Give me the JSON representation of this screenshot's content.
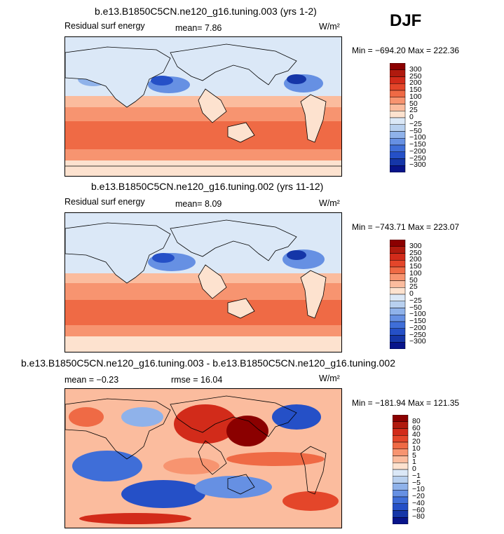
{
  "season": "DJF",
  "panels": [
    {
      "id": "p1",
      "title": "b.e13.B1850C5CN.ne120_g16.tuning.003 (yrs 1-2)",
      "variable": "Residual surf energy",
      "stat1": "mean=   7.86",
      "stat2": "",
      "units": "W/m²",
      "minmax": "Min = −694.20  Max = 222.36",
      "colorbar_labels": [
        "300",
        "250",
        "200",
        "150",
        "100",
        "50",
        "25",
        "0",
        "−25",
        "−50",
        "−100",
        "−150",
        "−200",
        "−250",
        "−300"
      ],
      "colors": [
        "#8b0000",
        "#b01a0e",
        "#d22b1a",
        "#e4462a",
        "#ef6a45",
        "#f79470",
        "#fbbc9e",
        "#fde2cf",
        "#dbe8f7",
        "#b8d0ef",
        "#8fb2ea",
        "#6690e3",
        "#3f6ed8",
        "#2550c7",
        "#1536a8",
        "#08148a"
      ]
    },
    {
      "id": "p2",
      "title": "b.e13.B1850C5CN.ne120_g16.tuning.002 (yrs 11-12)",
      "variable": "Residual surf energy",
      "stat1": "mean=   8.09",
      "stat2": "",
      "units": "W/m²",
      "minmax": "Min = −743.71  Max = 223.07",
      "colorbar_labels": [
        "300",
        "250",
        "200",
        "150",
        "100",
        "50",
        "25",
        "0",
        "−25",
        "−50",
        "−100",
        "−150",
        "−200",
        "−250",
        "−300"
      ],
      "colors": [
        "#8b0000",
        "#b01a0e",
        "#d22b1a",
        "#e4462a",
        "#ef6a45",
        "#f79470",
        "#fbbc9e",
        "#fde2cf",
        "#dbe8f7",
        "#b8d0ef",
        "#8fb2ea",
        "#6690e3",
        "#3f6ed8",
        "#2550c7",
        "#1536a8",
        "#08148a"
      ]
    },
    {
      "id": "p3",
      "title": "b.e13.B1850C5CN.ne120_g16.tuning.003 - b.e13.B1850C5CN.ne120_g16.tuning.002",
      "variable": "",
      "stat1": "mean =   −0.23",
      "stat2": "rmse =   16.04",
      "units": "W/m²",
      "minmax": "Min = −181.94  Max = 121.35",
      "colorbar_labels": [
        "80",
        "60",
        "40",
        "20",
        "10",
        "5",
        "1",
        "0",
        "−1",
        "−5",
        "−10",
        "−20",
        "−40",
        "−60",
        "−80"
      ],
      "colors": [
        "#8b0000",
        "#b01a0e",
        "#d22b1a",
        "#e4462a",
        "#ef6a45",
        "#f79470",
        "#fbbc9e",
        "#fde2cf",
        "#dbe8f7",
        "#b8d0ef",
        "#8fb2ea",
        "#6690e3",
        "#3f6ed8",
        "#2550c7",
        "#1536a8",
        "#08148a"
      ]
    }
  ],
  "chart_data": [
    {
      "type": "heatmap",
      "title": "b.e13.B1850C5CN.ne120_g16.tuning.003 (yrs 1-2)",
      "variable": "Residual surf energy",
      "mean": 7.86,
      "min": -694.2,
      "max": 222.36,
      "units": "W/m2",
      "levels": [
        -300,
        -250,
        -200,
        -150,
        -100,
        -50,
        -25,
        0,
        25,
        50,
        100,
        150,
        200,
        250,
        300
      ]
    },
    {
      "type": "heatmap",
      "title": "b.e13.B1850C5CN.ne120_g16.tuning.002 (yrs 11-12)",
      "variable": "Residual surf energy",
      "mean": 8.09,
      "min": -743.71,
      "max": 223.07,
      "units": "W/m2",
      "levels": [
        -300,
        -250,
        -200,
        -150,
        -100,
        -50,
        -25,
        0,
        25,
        50,
        100,
        150,
        200,
        250,
        300
      ]
    },
    {
      "type": "heatmap",
      "title": "b.e13.B1850C5CN.ne120_g16.tuning.003 - b.e13.B1850C5CN.ne120_g16.tuning.002",
      "mean": -0.23,
      "rmse": 16.04,
      "min": -181.94,
      "max": 121.35,
      "units": "W/m2",
      "levels": [
        -80,
        -60,
        -40,
        -20,
        -10,
        -5,
        -1,
        0,
        1,
        5,
        10,
        20,
        40,
        60,
        80
      ]
    }
  ]
}
